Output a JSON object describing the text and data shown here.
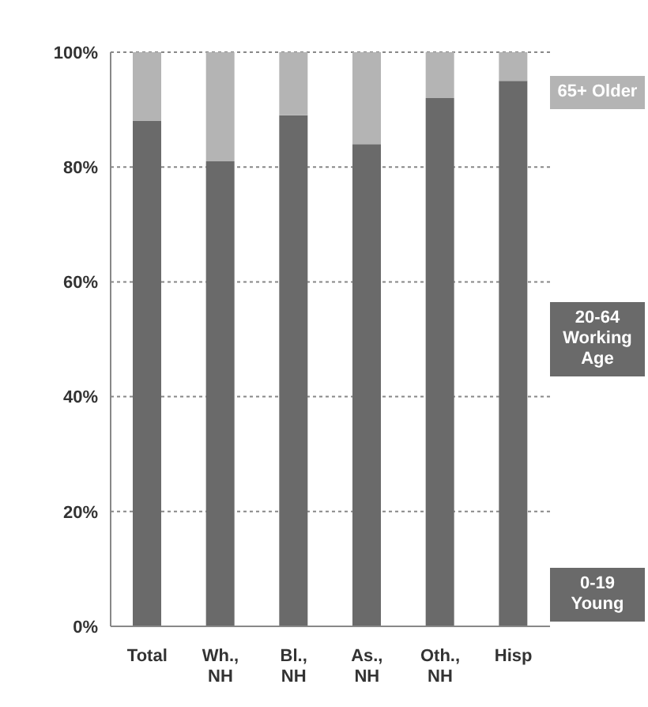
{
  "chart_data": {
    "type": "bar",
    "stacked": true,
    "categories": [
      "Total",
      "Wh., NH",
      "Bl., NH",
      "As., NH",
      "Oth., NH",
      "Hisp"
    ],
    "series": [
      {
        "color": "#6a6a6a",
        "values": [
          88,
          81,
          89,
          84,
          92,
          95
        ]
      },
      {
        "name": "65+ Older",
        "color": "#b4b4b4",
        "values": [
          12,
          19,
          11,
          16,
          8,
          5
        ]
      }
    ],
    "annotations": [
      "20-64 Working Age",
      "0-19 Young"
    ],
    "ylim": [
      0,
      100
    ],
    "yticks": [
      {
        "value": 0,
        "label": "0%"
      },
      {
        "value": 20,
        "label": "20%"
      },
      {
        "value": 40,
        "label": "40%"
      },
      {
        "value": 60,
        "label": "60%"
      },
      {
        "value": 80,
        "label": "80%"
      },
      {
        "value": 100,
        "label": "100%"
      }
    ],
    "grid": "y",
    "legend": "right"
  }
}
